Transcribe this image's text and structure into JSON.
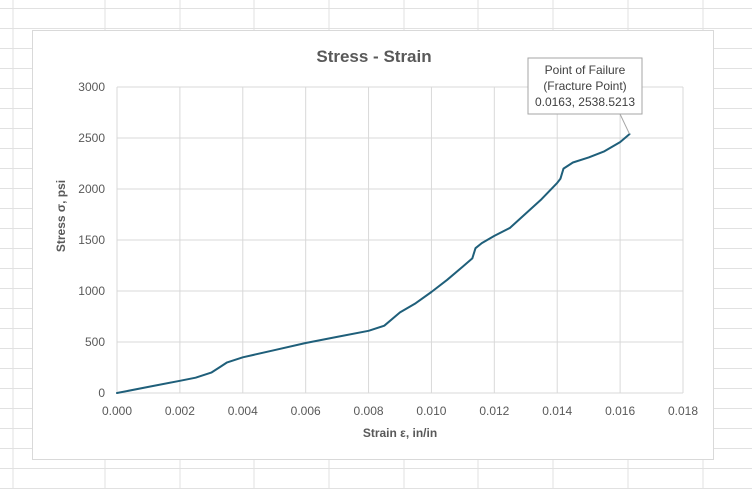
{
  "chart_data": {
    "type": "line",
    "title": "Stress - Strain",
    "xlabel": "Strain ε, in/in",
    "ylabel": "Stress σ, psi",
    "xlim": [
      0,
      0.018
    ],
    "ylim": [
      0,
      3000
    ],
    "x_ticks": [
      0,
      0.002,
      0.004,
      0.006,
      0.008,
      0.01,
      0.012,
      0.014,
      0.016,
      0.018
    ],
    "x_tick_labels": [
      "0.000",
      "0.002",
      "0.004",
      "0.006",
      "0.008",
      "0.010",
      "0.012",
      "0.014",
      "0.016",
      "0.018"
    ],
    "y_ticks": [
      0,
      500,
      1000,
      1500,
      2000,
      2500,
      3000
    ],
    "y_tick_labels": [
      "0",
      "500",
      "1000",
      "1500",
      "2000",
      "2500",
      "3000"
    ],
    "grid": true,
    "legend": "none",
    "series_color": "#1f5f7a",
    "series": [
      {
        "x": [
          0,
          0.001,
          0.002,
          0.0025,
          0.003,
          0.0033,
          0.0035,
          0.004,
          0.005,
          0.006,
          0.007,
          0.008,
          0.0085,
          0.009,
          0.0095,
          0.01,
          0.0105,
          0.011,
          0.0113,
          0.0114,
          0.0116,
          0.012,
          0.0125,
          0.013,
          0.0135,
          0.014,
          0.0141,
          0.0142,
          0.0145,
          0.015,
          0.0155,
          0.016,
          0.0163
        ],
        "y": [
          0,
          60,
          120,
          150,
          200,
          260,
          300,
          350,
          420,
          490,
          550,
          610,
          660,
          790,
          880,
          990,
          1110,
          1240,
          1320,
          1420,
          1470,
          1540,
          1620,
          1760,
          1900,
          2060,
          2100,
          2200,
          2260,
          2310,
          2370,
          2460,
          2538.5213
        ]
      }
    ],
    "annotation": {
      "lines": [
        "Point of Failure",
        "(Fracture Point)",
        "0.0163, 2538.5213"
      ],
      "x": 0.0163,
      "y": 2538.5213
    }
  }
}
